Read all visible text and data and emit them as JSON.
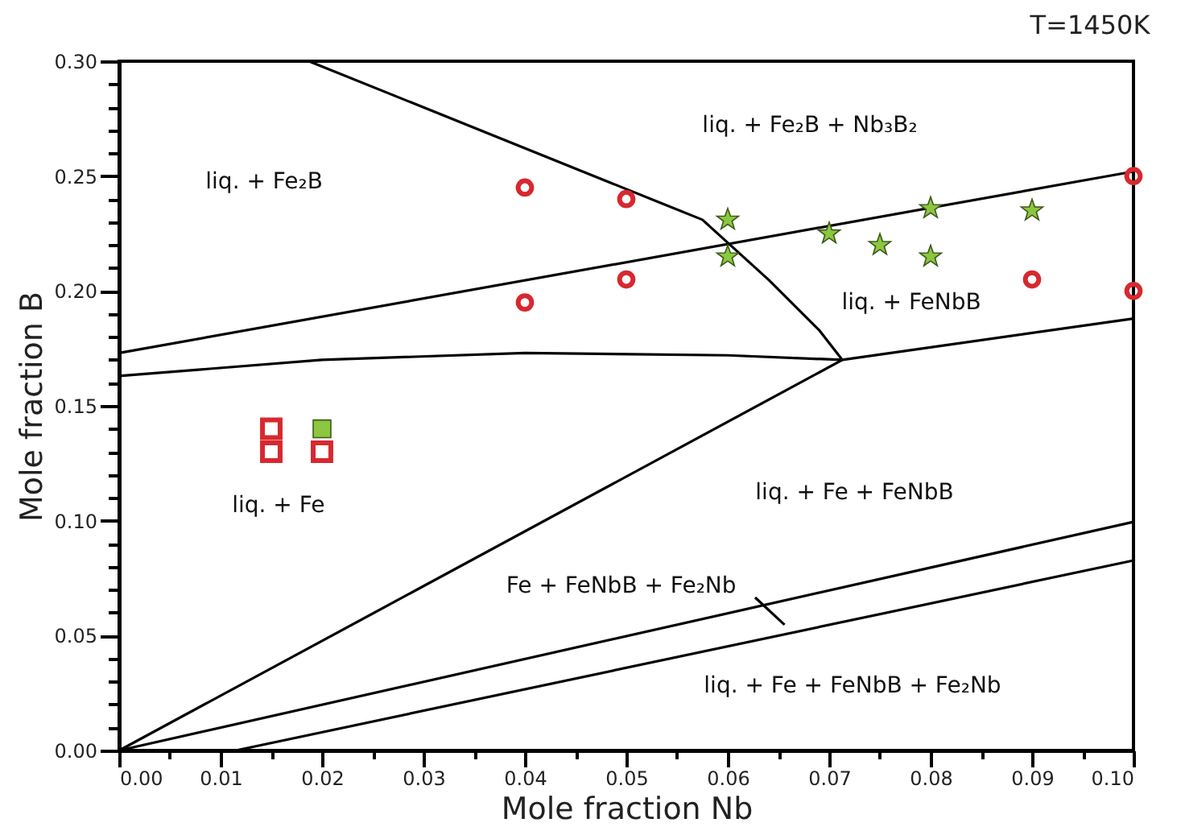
{
  "chart_data": {
    "type": "line",
    "title": "T=1450K",
    "xlabel": "Mole fraction Nb",
    "ylabel": "Mole fraction B",
    "xlim": [
      0,
      0.1
    ],
    "ylim": [
      0,
      0.3
    ],
    "xticks": [
      {
        "value": 0,
        "label": "0.00"
      },
      {
        "value": 0.005,
        "label": null
      },
      {
        "value": 0.01,
        "label": "0.01"
      },
      {
        "value": 0.015,
        "label": null
      },
      {
        "value": 0.02,
        "label": "0.02"
      },
      {
        "value": 0.025,
        "label": null
      },
      {
        "value": 0.03,
        "label": "0.03"
      },
      {
        "value": 0.035,
        "label": null
      },
      {
        "value": 0.04,
        "label": "0.04"
      },
      {
        "value": 0.045,
        "label": null
      },
      {
        "value": 0.05,
        "label": "0.05"
      },
      {
        "value": 0.055,
        "label": null
      },
      {
        "value": 0.06,
        "label": "0.06"
      },
      {
        "value": 0.065,
        "label": null
      },
      {
        "value": 0.07,
        "label": "0.07"
      },
      {
        "value": 0.075,
        "label": null
      },
      {
        "value": 0.08,
        "label": "0.08"
      },
      {
        "value": 0.085,
        "label": null
      },
      {
        "value": 0.09,
        "label": "0.09"
      },
      {
        "value": 0.095,
        "label": null
      },
      {
        "value": 0.1,
        "label": "0.10"
      }
    ],
    "yticks": [
      {
        "value": 0,
        "label": "0.00"
      },
      {
        "value": 0.01,
        "label": null
      },
      {
        "value": 0.02,
        "label": null
      },
      {
        "value": 0.03,
        "label": null
      },
      {
        "value": 0.04,
        "label": null
      },
      {
        "value": 0.05,
        "label": "0.05"
      },
      {
        "value": 0.06,
        "label": null
      },
      {
        "value": 0.07,
        "label": null
      },
      {
        "value": 0.08,
        "label": null
      },
      {
        "value": 0.09,
        "label": null
      },
      {
        "value": 0.1,
        "label": "0.10"
      },
      {
        "value": 0.11,
        "label": null
      },
      {
        "value": 0.12,
        "label": null
      },
      {
        "value": 0.13,
        "label": null
      },
      {
        "value": 0.14,
        "label": null
      },
      {
        "value": 0.15,
        "label": "0.15"
      },
      {
        "value": 0.16,
        "label": null
      },
      {
        "value": 0.17,
        "label": null
      },
      {
        "value": 0.18,
        "label": null
      },
      {
        "value": 0.19,
        "label": null
      },
      {
        "value": 0.2,
        "label": "0.20"
      },
      {
        "value": 0.21,
        "label": null
      },
      {
        "value": 0.22,
        "label": null
      },
      {
        "value": 0.23,
        "label": null
      },
      {
        "value": 0.24,
        "label": null
      },
      {
        "value": 0.25,
        "label": "0.25"
      },
      {
        "value": 0.26,
        "label": null
      },
      {
        "value": 0.27,
        "label": null
      },
      {
        "value": 0.28,
        "label": null
      },
      {
        "value": 0.29,
        "label": null
      },
      {
        "value": 0.3,
        "label": "0.30"
      }
    ],
    "grid": false,
    "line_style": "solid",
    "series": [
      {
        "type": "line",
        "color": "#000000",
        "x": [
          0.0187,
          0.0575,
          0.064,
          0.069,
          0.0713
        ],
        "values": [
          0.3,
          0.231,
          0.205,
          0.183,
          0.17
        ]
      },
      {
        "type": "line",
        "color": "#000000",
        "x": [
          0,
          0.1
        ],
        "values": [
          0.173,
          0.252
        ]
      },
      {
        "type": "line",
        "color": "#000000",
        "x": [
          0,
          0.02,
          0.04,
          0.06,
          0.0713,
          0.1
        ],
        "values": [
          0.163,
          0.17,
          0.173,
          0.172,
          0.17,
          0.188
        ]
      },
      {
        "type": "line",
        "color": "#000000",
        "x": [
          0,
          0.0713
        ],
        "values": [
          0,
          0.17
        ]
      },
      {
        "type": "line",
        "color": "#000000",
        "x": [
          0,
          0.1
        ],
        "values": [
          0,
          0.0995
        ]
      },
      {
        "type": "line",
        "color": "#000000",
        "x": [
          0.0115,
          0.1
        ],
        "values": [
          0,
          0.0827
        ]
      },
      {
        "type": "line",
        "color": "#000000",
        "x": [
          0.0627,
          0.0656
        ],
        "values": [
          0.0666,
          0.0547
        ]
      },
      {
        "type": "scatter",
        "marker": "circle",
        "color": "#d7282f",
        "x": [
          0.04,
          0.05,
          0.04,
          0.05,
          0.09,
          0.1,
          0.1
        ],
        "values": [
          0.245,
          0.24,
          0.195,
          0.205,
          0.205,
          0.25,
          0.2
        ]
      },
      {
        "type": "scatter",
        "marker": "star",
        "color": "#8dc63f",
        "x": [
          0.06,
          0.06,
          0.07,
          0.075,
          0.08,
          0.08,
          0.09
        ],
        "values": [
          0.231,
          0.215,
          0.225,
          0.22,
          0.236,
          0.215,
          0.235
        ]
      },
      {
        "type": "scatter",
        "marker": "square",
        "color": "#d7282f",
        "x": [
          0.015,
          0.015,
          0.02
        ],
        "values": [
          0.14,
          0.13,
          0.13
        ]
      },
      {
        "type": "scatter",
        "marker": "square",
        "color": "#8dc63f",
        "x": [
          0.02
        ],
        "values": [
          0.14
        ]
      }
    ],
    "annotations": [
      "liq. + Fe₂B",
      "liq. + Fe₂B + Nb₃B₂",
      "liq. + FeNbB",
      "liq. + Fe",
      "liq. + Fe + FeNbB",
      "Fe + FeNbB + Fe₂Nb",
      "liq. + Fe + FeNbB + Fe₂Nb"
    ]
  }
}
